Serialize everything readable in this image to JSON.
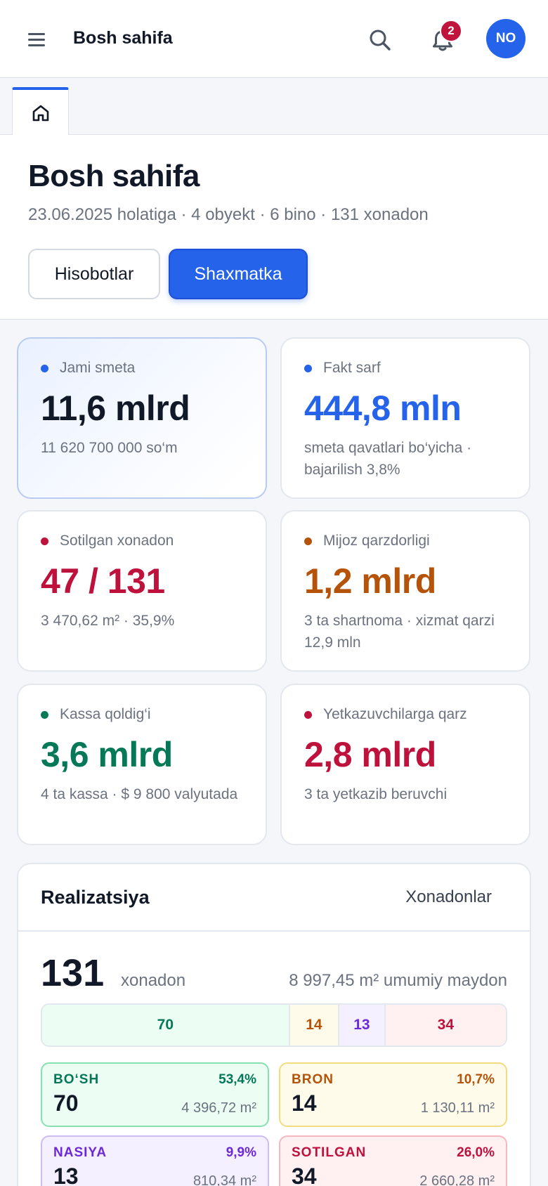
{
  "header": {
    "title": "Bosh sahifa",
    "notifications_count": "2",
    "avatar_initials": "NO",
    "icons": [
      "menu-icon",
      "search-icon",
      "bell-icon",
      "home-icon"
    ]
  },
  "page": {
    "title": "Bosh sahifa",
    "subtitle": "23.06.2025 holatiga · 4 obyekt · 6 bino · 131 xonadon",
    "buttons": {
      "reports": "Hisobotlar",
      "chess": "Shaxmatka"
    }
  },
  "kpis": [
    {
      "label": "Jami smeta",
      "value": "11,6 mlrd",
      "note": "11 620 700 000 so‘m",
      "color": "#111827",
      "dot": "#2563eb"
    },
    {
      "label": "Fakt sarf",
      "value": "444,8 mln",
      "note": "smeta qavatlari bo‘yicha · bajarilish 3,8%",
      "color": "#2563eb",
      "dot": "#2563eb"
    },
    {
      "label": "Sotilgan xonadon",
      "value": "47 / 131",
      "note": "3 470,62 m² · 35,9%",
      "color": "#be123c",
      "dot": "#be123c"
    },
    {
      "label": "Mijoz qarzdorligi",
      "value": "1,2 mlrd",
      "note": "3 ta shartnoma · xizmat qarzi 12,9 mln",
      "color": "#b45309",
      "dot": "#b45309"
    },
    {
      "label": "Kassa qoldig‘i",
      "value": "3,6 mlrd",
      "note": "4 ta kassa · $ 9 800 valyutada",
      "color": "#047857",
      "dot": "#047857"
    },
    {
      "label": "Yetkazuvchilarga qarz",
      "value": "2,8 mlrd",
      "note": "3 ta yetkazib beruvchi",
      "color": "#be123c",
      "dot": "#be123c"
    }
  ],
  "realization": {
    "title": "Realizatsiya",
    "link": "Xonadonlar",
    "total": "131",
    "total_unit": "xonadon",
    "total_area": "8 997,45 m² umumiy maydon",
    "segments": [
      {
        "value": 70,
        "label": "70",
        "bg": "#ecfdf3",
        "fg": "#047857"
      },
      {
        "value": 14,
        "label": "14",
        "bg": "#fffbea",
        "fg": "#b45309"
      },
      {
        "value": 13,
        "label": "13",
        "bg": "#f4f0ff",
        "fg": "#6d28d9"
      },
      {
        "value": 34,
        "label": "34",
        "bg": "#fff0f1",
        "fg": "#be123c"
      }
    ],
    "stats": [
      {
        "name": "BO‘SH",
        "pct": "53,4%",
        "count": "70",
        "area": "4 396,72 m²",
        "bg": "#ecfdf3",
        "border": "#86e0b0",
        "fg": "#047857"
      },
      {
        "name": "BRON",
        "pct": "10,7%",
        "count": "14",
        "area": "1 130,11 m²",
        "bg": "#fffbea",
        "border": "#f3dc80",
        "fg": "#b45309"
      },
      {
        "name": "NASIYA",
        "pct": "9,9%",
        "count": "13",
        "area": "810,34 m²",
        "bg": "#f4f0ff",
        "border": "#cdbdf5",
        "fg": "#6d28d9"
      },
      {
        "name": "SOTILGAN",
        "pct": "26,0%",
        "count": "34",
        "area": "2 660,28 m²",
        "bg": "#fff0f1",
        "border": "#f5b8c2",
        "fg": "#be123c"
      }
    ]
  }
}
